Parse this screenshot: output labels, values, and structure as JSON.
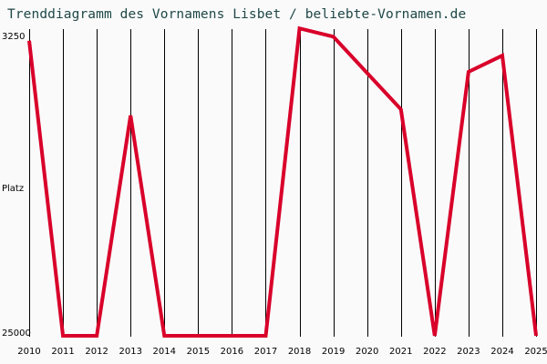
{
  "title": "Trenddiagramm des Vornamens Lisbet / beliebte-Vornamen.de",
  "colors": {
    "line": "#d9002a",
    "grid": "#000000",
    "background": "#fafafa",
    "title": "#1f4747"
  },
  "chart_data": {
    "type": "line",
    "title": "Trenddiagramm des Vornamens Lisbet / beliebte-Vornamen.de",
    "xlabel": "",
    "ylabel": "Platz",
    "y_inverted": true,
    "ylim": [
      25000,
      3250
    ],
    "y_tick_labels": [
      "3250",
      "Platz",
      "25000"
    ],
    "grid": "vertical",
    "categories": [
      "2010",
      "2011",
      "2012",
      "2013",
      "2014",
      "2015",
      "2016",
      "2017",
      "2018",
      "2019",
      "2020",
      "2021",
      "2022",
      "2023",
      "2024",
      "2025"
    ],
    "series": [
      {
        "name": "Lisbet",
        "values": [
          3500,
          25000,
          25000,
          8950,
          25000,
          25000,
          25000,
          25000,
          2600,
          3200,
          5850,
          8500,
          25000,
          5770,
          4580,
          25000
        ]
      }
    ]
  }
}
